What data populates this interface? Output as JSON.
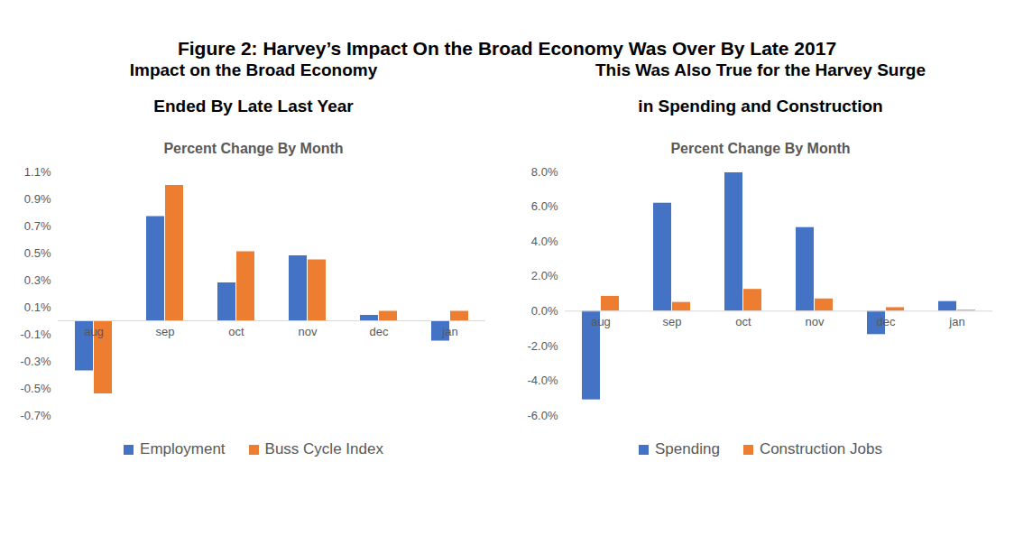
{
  "title": "Figure 2: Harvey’s Impact On the Broad Economy Was Over By Late 2017",
  "chart_data": [
    {
      "type": "bar",
      "title": "Impact on the Broad Economy\nEnded By Late Last Year",
      "subtitle": "Percent Change By Month",
      "categories": [
        "aug",
        "sep",
        "oct",
        "nov",
        "dec",
        "jan"
      ],
      "series": [
        {
          "name": "Employment",
          "color": "#4472c4",
          "values": [
            -0.37,
            0.77,
            0.28,
            0.48,
            0.04,
            -0.15
          ]
        },
        {
          "name": "Buss Cycle Index",
          "color": "#ed7d31",
          "values": [
            -0.54,
            1.0,
            0.51,
            0.45,
            0.07,
            0.07
          ]
        }
      ],
      "ylim": [
        -0.7,
        1.1
      ],
      "yticks": [
        {
          "value": -0.7,
          "label": "-0.7%"
        },
        {
          "value": -0.5,
          "label": "-0.5%"
        },
        {
          "value": -0.3,
          "label": "-0.3%"
        },
        {
          "value": -0.1,
          "label": "-0.1%"
        },
        {
          "value": 0.1,
          "label": "0.1%"
        },
        {
          "value": 0.3,
          "label": "0.3%"
        },
        {
          "value": 0.5,
          "label": "0.5%"
        },
        {
          "value": 0.7,
          "label": "0.7%"
        },
        {
          "value": 0.9,
          "label": "0.9%"
        },
        {
          "value": 1.1,
          "label": "1.1%"
        }
      ],
      "grid": false,
      "legend": "bottom"
    },
    {
      "type": "bar",
      "title": "This Was Also True for the Harvey Surge\nin Spending and Construction",
      "subtitle": "Percent Change By Month",
      "categories": [
        "aug",
        "sep",
        "oct",
        "nov",
        "dec",
        "jan"
      ],
      "series": [
        {
          "name": "Spending",
          "color": "#4472c4",
          "values": [
            -5.1,
            6.2,
            7.95,
            4.8,
            -1.35,
            0.55
          ]
        },
        {
          "name": "Construction Jobs",
          "color": "#ed7d31",
          "values": [
            0.85,
            0.5,
            1.25,
            0.7,
            0.2,
            0.05
          ]
        }
      ],
      "ylim": [
        -6,
        8
      ],
      "yticks": [
        {
          "value": -6,
          "label": "-6.0%"
        },
        {
          "value": -4,
          "label": "-4.0%"
        },
        {
          "value": -2,
          "label": "-2.0%"
        },
        {
          "value": 0,
          "label": "0.0%"
        },
        {
          "value": 2,
          "label": "2.0%"
        },
        {
          "value": 4,
          "label": "4.0%"
        },
        {
          "value": 6,
          "label": "6.0%"
        },
        {
          "value": 8,
          "label": "8.0%"
        }
      ],
      "grid": false,
      "legend": "bottom"
    }
  ]
}
